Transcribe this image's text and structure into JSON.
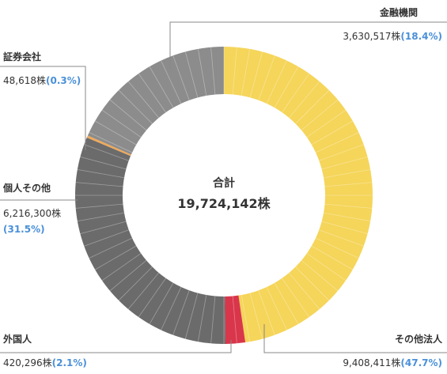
{
  "chart_data": {
    "type": "pie",
    "style": "donut",
    "center_title": "合計",
    "center_total": "19,724,142株",
    "slices": [
      {
        "name": "金融機関",
        "value": 3630517,
        "value_label": "3,630,517株",
        "pct_label": "(18.4%)",
        "color": "#8c8c8c"
      },
      {
        "name": "その他法人",
        "value": 9408411,
        "value_label": "9,408,411株",
        "pct_label": "(47.7%)",
        "color": "#f5d55a"
      },
      {
        "name": "外国人",
        "value": 420296,
        "value_label": "420,296株",
        "pct_label": "(2.1%)",
        "color": "#d9364b"
      },
      {
        "name": "個人その他",
        "value": 6216300,
        "value_label": "6,216,300株",
        "pct_label": "(31.5%)",
        "color": "#6b6b6b"
      },
      {
        "name": "証券会社",
        "value": 48618,
        "value_label": "48,618株",
        "pct_label": "(0.3%)",
        "color": "#f0a95a"
      }
    ],
    "slice_order_clockwise_from_top": [
      "その他法人",
      "外国人",
      "個人その他",
      "証券会社",
      "金融機関"
    ]
  }
}
